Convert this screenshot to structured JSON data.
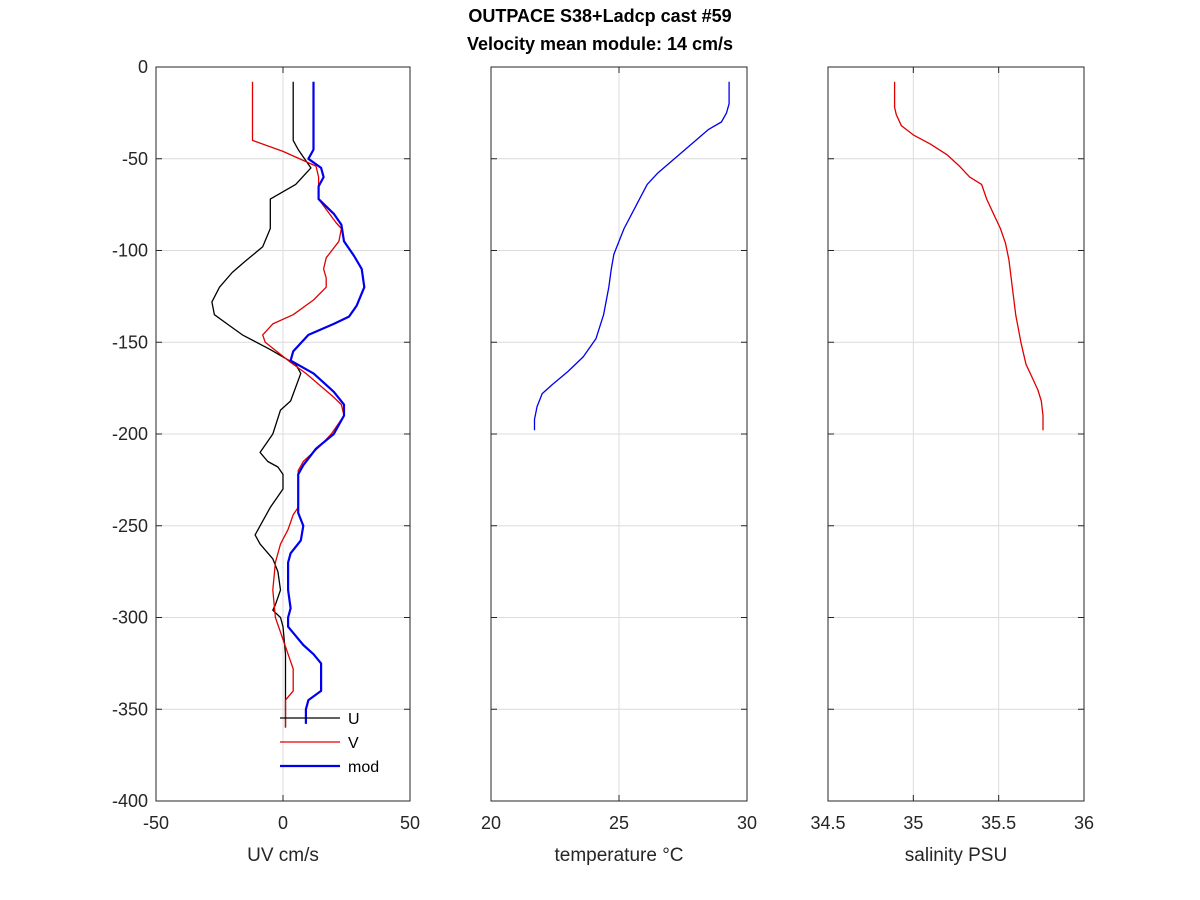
{
  "figure": {
    "title_line1": "OUTPACE S38+Ladcp cast #59",
    "title_line2": "Velocity mean module:  14 cm/s"
  },
  "chart_data": [
    {
      "type": "line",
      "xlabel": "UV cm/s",
      "ylabel": "",
      "xlim": [
        -50,
        50
      ],
      "ylim": [
        -400,
        0
      ],
      "xticks": [
        -50,
        0,
        50
      ],
      "yticks": [
        0,
        -50,
        -100,
        -150,
        -200,
        -250,
        -300,
        -350,
        -400
      ],
      "grid": true,
      "legend": {
        "placement": "bottom",
        "entries": [
          "U",
          "V",
          "mod"
        ]
      },
      "series": [
        {
          "name": "U",
          "color": "#000000",
          "points": [
            [
              4,
              -8
            ],
            [
              4,
              -40
            ],
            [
              6,
              -45
            ],
            [
              11,
              -55
            ],
            [
              5,
              -64
            ],
            [
              -5,
              -72
            ],
            [
              -5,
              -88
            ],
            [
              -8,
              -98
            ],
            [
              -15,
              -106
            ],
            [
              -20,
              -112
            ],
            [
              -25,
              -120
            ],
            [
              -28,
              -128
            ],
            [
              -27,
              -135
            ],
            [
              -22,
              -140
            ],
            [
              -16,
              -146
            ],
            [
              -5,
              -154
            ],
            [
              5,
              -162
            ],
            [
              7,
              -167
            ],
            [
              3,
              -182
            ],
            [
              -1,
              -187
            ],
            [
              -4,
              -200
            ],
            [
              -9,
              -210
            ],
            [
              -6,
              -215
            ],
            [
              -2,
              -218
            ],
            [
              0,
              -222
            ],
            [
              0,
              -230
            ],
            [
              -5,
              -240
            ],
            [
              -9,
              -250
            ],
            [
              -11,
              -255
            ],
            [
              -9,
              -260
            ],
            [
              -4,
              -268
            ],
            [
              -2,
              -275
            ],
            [
              -1,
              -285
            ],
            [
              -3,
              -293
            ],
            [
              -4,
              -296
            ],
            [
              -1,
              -300
            ],
            [
              0,
              -305
            ],
            [
              1,
              -320
            ],
            [
              1,
              -340
            ],
            [
              1,
              -355
            ],
            [
              1,
              -360
            ]
          ]
        },
        {
          "name": "V",
          "color": "#e00000",
          "points": [
            [
              -12,
              -8
            ],
            [
              -12,
              -40
            ],
            [
              0,
              -46
            ],
            [
              13,
              -54
            ],
            [
              14,
              -60
            ],
            [
              14,
              -72
            ],
            [
              21,
              -85
            ],
            [
              23,
              -88
            ],
            [
              22,
              -95
            ],
            [
              17,
              -104
            ],
            [
              16,
              -110
            ],
            [
              17,
              -115
            ],
            [
              17,
              -120
            ],
            [
              12,
              -127
            ],
            [
              4,
              -135
            ],
            [
              -4,
              -140
            ],
            [
              -8,
              -146
            ],
            [
              -7,
              -150
            ],
            [
              3,
              -161
            ],
            [
              9,
              -167
            ],
            [
              20,
              -180
            ],
            [
              23,
              -184
            ],
            [
              24,
              -190
            ],
            [
              19,
              -200
            ],
            [
              15,
              -206
            ],
            [
              8,
              -215
            ],
            [
              6,
              -220
            ],
            [
              6,
              -230
            ],
            [
              6,
              -240
            ],
            [
              4,
              -244
            ],
            [
              2,
              -252
            ],
            [
              -1,
              -260
            ],
            [
              -3,
              -270
            ],
            [
              -4,
              -285
            ],
            [
              -3,
              -300
            ],
            [
              -1,
              -308
            ],
            [
              2,
              -320
            ],
            [
              4,
              -328
            ],
            [
              4,
              -340
            ],
            [
              1,
              -345
            ],
            [
              1,
              -350
            ],
            [
              1,
              -360
            ]
          ]
        },
        {
          "name": "mod",
          "color": "#0000ee",
          "thick": true,
          "points": [
            [
              12,
              -8
            ],
            [
              12,
              -45
            ],
            [
              10,
              -50
            ],
            [
              15,
              -55
            ],
            [
              16,
              -60
            ],
            [
              14,
              -65
            ],
            [
              14,
              -72
            ],
            [
              20,
              -80
            ],
            [
              23,
              -86
            ],
            [
              24,
              -95
            ],
            [
              28,
              -103
            ],
            [
              31,
              -110
            ],
            [
              32,
              -120
            ],
            [
              29,
              -130
            ],
            [
              26,
              -136
            ],
            [
              20,
              -140
            ],
            [
              10,
              -146
            ],
            [
              4,
              -155
            ],
            [
              3,
              -160
            ],
            [
              12,
              -167
            ],
            [
              20,
              -177
            ],
            [
              24,
              -184
            ],
            [
              24,
              -190
            ],
            [
              20,
              -200
            ],
            [
              13,
              -208
            ],
            [
              8,
              -217
            ],
            [
              6,
              -222
            ],
            [
              6,
              -235
            ],
            [
              6,
              -243
            ],
            [
              8,
              -250
            ],
            [
              7,
              -258
            ],
            [
              3,
              -265
            ],
            [
              2,
              -270
            ],
            [
              2,
              -285
            ],
            [
              3,
              -295
            ],
            [
              2,
              -300
            ],
            [
              2,
              -305
            ],
            [
              8,
              -315
            ],
            [
              12,
              -320
            ],
            [
              15,
              -325
            ],
            [
              15,
              -340
            ],
            [
              10,
              -345
            ],
            [
              9,
              -350
            ],
            [
              9,
              -358
            ]
          ]
        }
      ]
    },
    {
      "type": "line",
      "xlabel": "temperature °C",
      "ylabel": "",
      "xlim": [
        20,
        30
      ],
      "ylim": [
        -400,
        0
      ],
      "xticks": [
        20,
        25,
        30
      ],
      "yticks": [
        0,
        -50,
        -100,
        -150,
        -200,
        -250,
        -300,
        -350,
        -400
      ],
      "grid": true,
      "series": [
        {
          "color": "#0000ee",
          "points": [
            [
              29.3,
              -8
            ],
            [
              29.3,
              -20
            ],
            [
              29.2,
              -25
            ],
            [
              29.0,
              -30
            ],
            [
              28.5,
              -34
            ],
            [
              28.0,
              -40
            ],
            [
              27.5,
              -46
            ],
            [
              27.0,
              -52
            ],
            [
              26.5,
              -58
            ],
            [
              26.1,
              -64
            ],
            [
              25.8,
              -72
            ],
            [
              25.5,
              -80
            ],
            [
              25.2,
              -88
            ],
            [
              25.0,
              -95
            ],
            [
              24.8,
              -102
            ],
            [
              24.7,
              -110
            ],
            [
              24.6,
              -120
            ],
            [
              24.4,
              -135
            ],
            [
              24.1,
              -148
            ],
            [
              23.6,
              -158
            ],
            [
              23.0,
              -166
            ],
            [
              22.4,
              -173
            ],
            [
              22.0,
              -178
            ],
            [
              21.8,
              -185
            ],
            [
              21.7,
              -192
            ],
            [
              21.7,
              -198
            ]
          ]
        }
      ]
    },
    {
      "type": "line",
      "xlabel": "salinity PSU",
      "ylabel": "",
      "xlim": [
        34.5,
        36
      ],
      "ylim": [
        -400,
        0
      ],
      "xticks": [
        34.5,
        35,
        35.5,
        36
      ],
      "yticks": [
        0,
        -50,
        -100,
        -150,
        -200,
        -250,
        -300,
        -350,
        -400
      ],
      "grid": true,
      "series": [
        {
          "color": "#e00000",
          "points": [
            [
              34.89,
              -8
            ],
            [
              34.89,
              -22
            ],
            [
              34.9,
              -26
            ],
            [
              34.93,
              -32
            ],
            [
              35.0,
              -37
            ],
            [
              35.1,
              -42
            ],
            [
              35.2,
              -48
            ],
            [
              35.27,
              -54
            ],
            [
              35.33,
              -60
            ],
            [
              35.4,
              -64
            ],
            [
              35.43,
              -72
            ],
            [
              35.47,
              -80
            ],
            [
              35.51,
              -88
            ],
            [
              35.54,
              -96
            ],
            [
              35.56,
              -105
            ],
            [
              35.58,
              -120
            ],
            [
              35.6,
              -135
            ],
            [
              35.63,
              -150
            ],
            [
              35.66,
              -162
            ],
            [
              35.7,
              -170
            ],
            [
              35.73,
              -176
            ],
            [
              35.75,
              -182
            ],
            [
              35.76,
              -190
            ],
            [
              35.76,
              -198
            ]
          ]
        }
      ]
    }
  ]
}
